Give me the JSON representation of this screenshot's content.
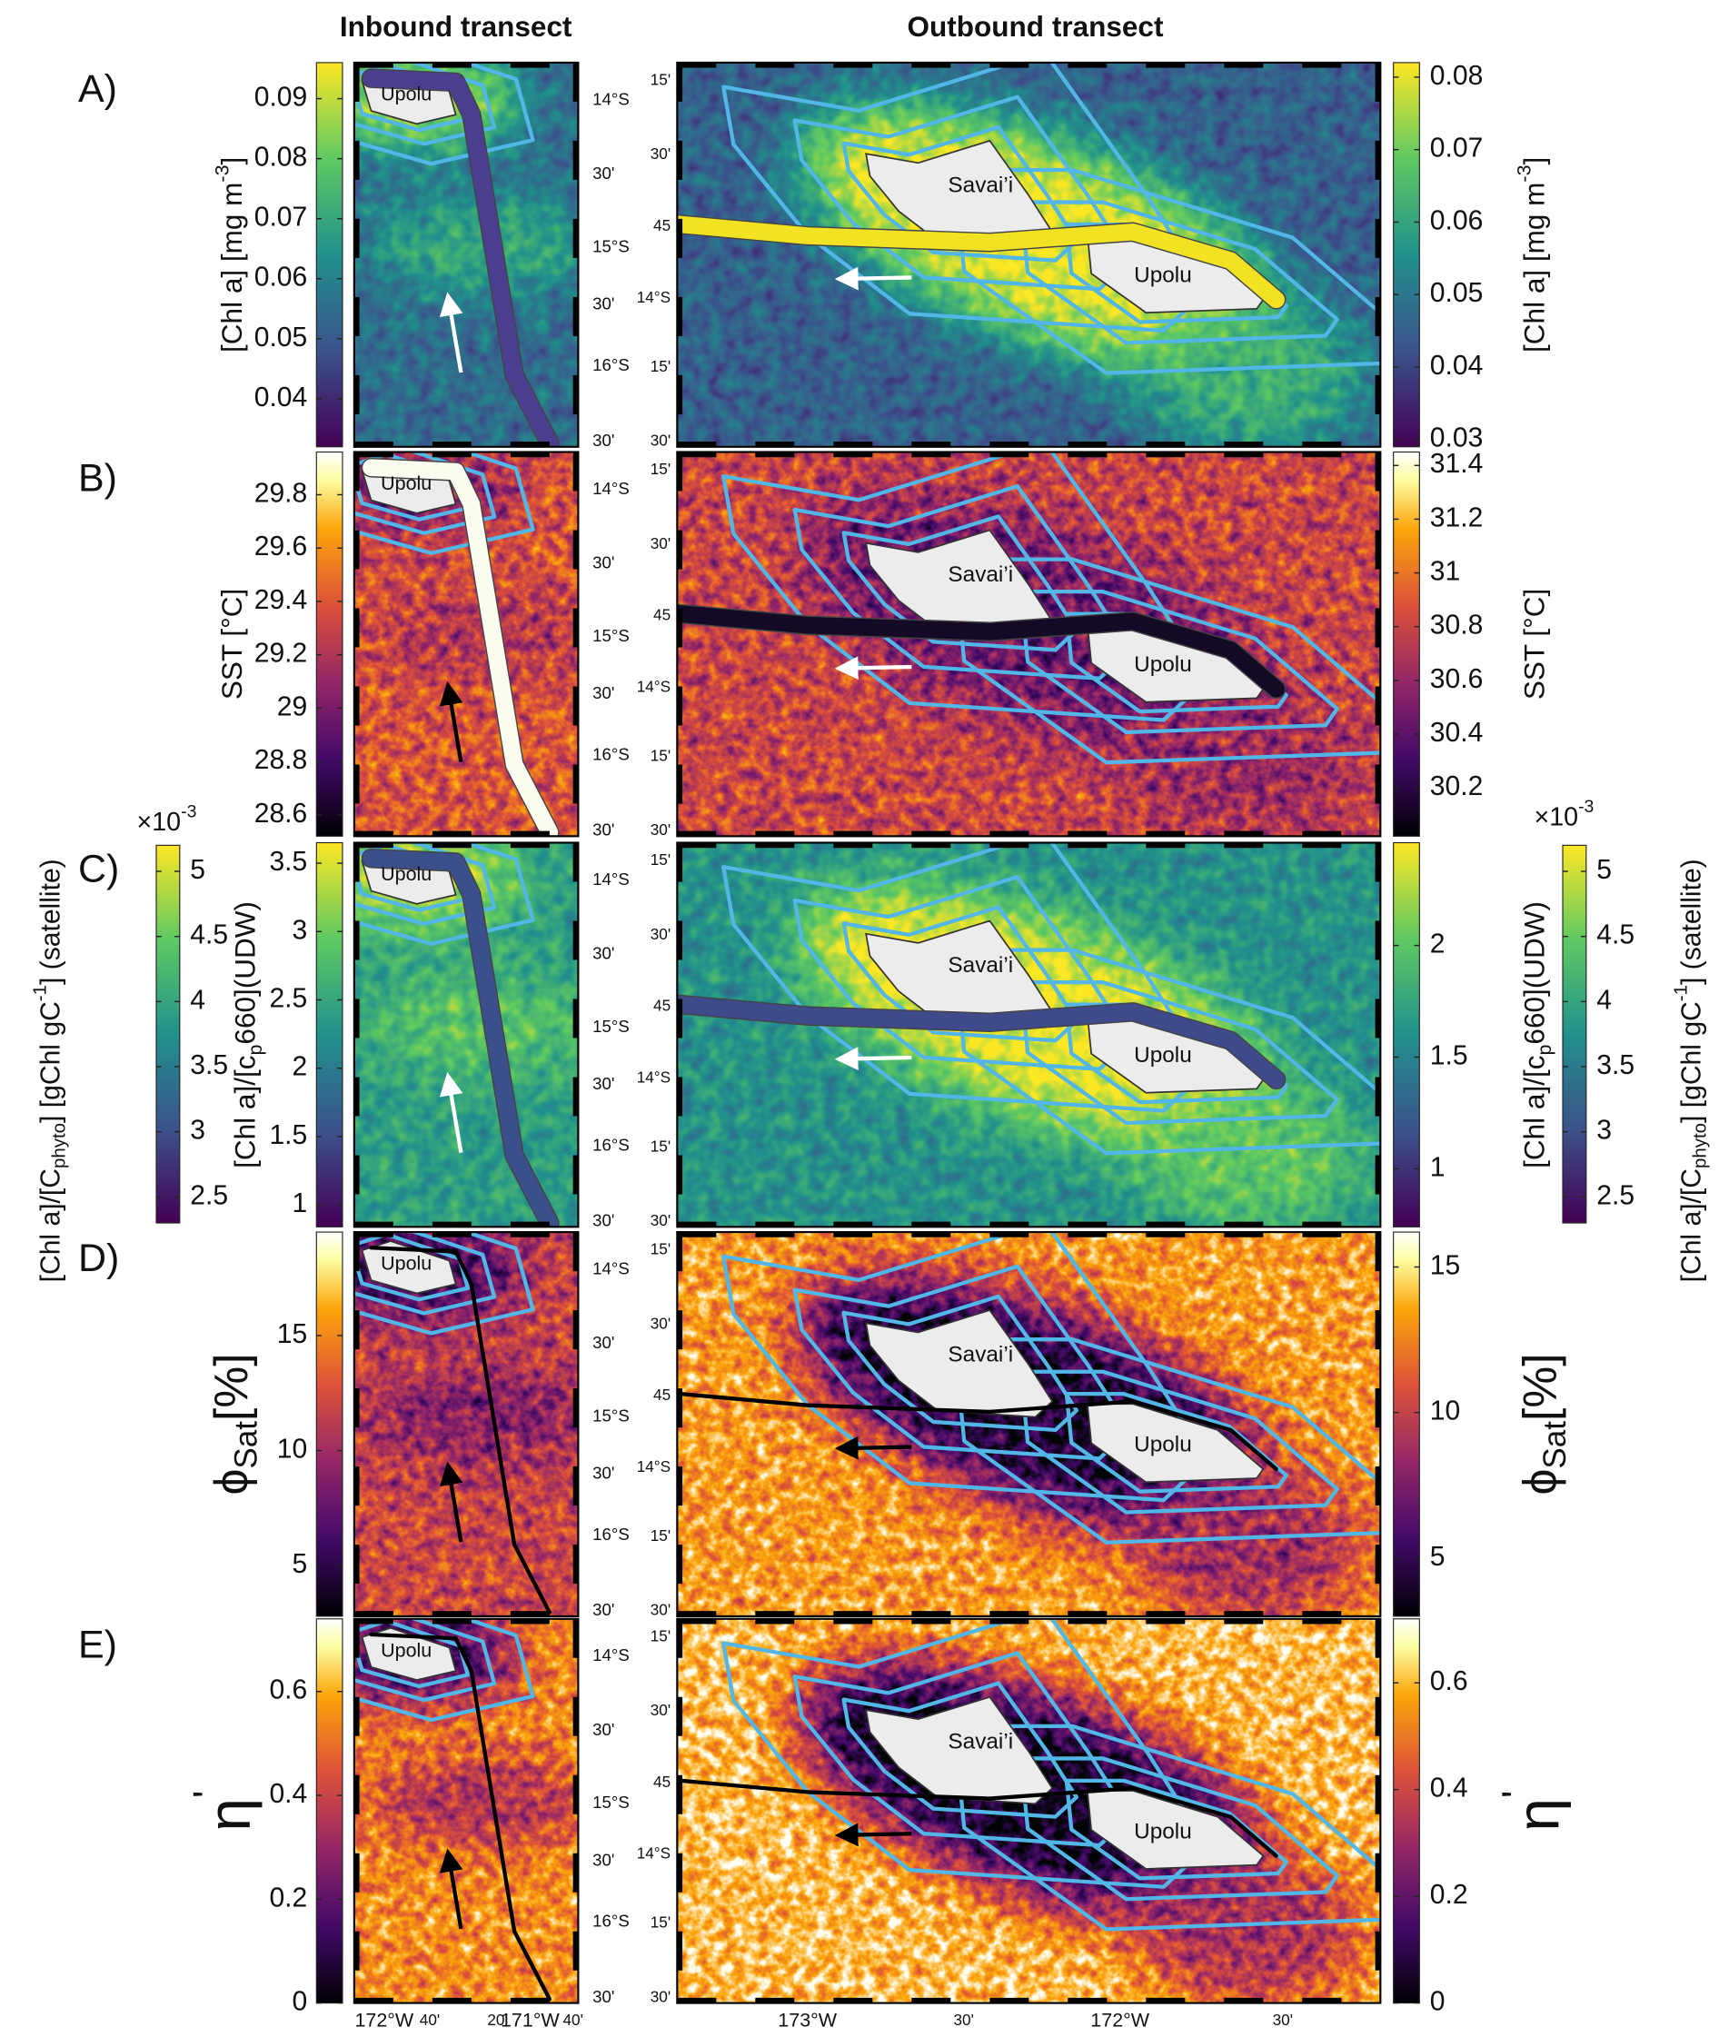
{
  "titles": {
    "inbound": "Inbound transect",
    "outbound": "Outbound transect"
  },
  "islands": {
    "savaii": "Savai’i",
    "upolu": "Upolu"
  },
  "lat_labels_left": [
    "14°S",
    "30'",
    "15°S",
    "30'",
    "16°S",
    "30'"
  ],
  "lat_labels_right": [
    "15'",
    "30'",
    "45",
    "14°S",
    "15'",
    "30'"
  ],
  "lon_labels_left": [
    "172°W",
    "40'",
    "20'",
    "171°W",
    "40'"
  ],
  "lon_labels_right": [
    "173°W",
    "30'",
    "172°W",
    "30'"
  ],
  "panels": [
    {
      "label": "A)",
      "colormap": "viridis",
      "left_colorbar": {
        "label": [
          "[Chl a] [mg m",
          {
            "sup": "-3"
          },
          "]"
        ],
        "range": [
          0.032,
          0.096
        ],
        "ticks": [
          0.04,
          0.05,
          0.06,
          0.07,
          0.08,
          0.09
        ]
      },
      "right_colorbar": {
        "label": [
          "[Chl a] [mg m",
          {
            "sup": "-3"
          },
          "]"
        ],
        "range": [
          0.029,
          0.082
        ],
        "ticks": [
          0.03,
          0.04,
          0.05,
          0.06,
          0.07,
          0.08
        ]
      }
    },
    {
      "label": "B)",
      "colormap": "inferno",
      "left_colorbar": {
        "label": [
          "SST [°C]"
        ],
        "range": [
          28.52,
          29.96
        ],
        "ticks": [
          28.6,
          28.8,
          29,
          29.2,
          29.4,
          29.6,
          29.8
        ]
      },
      "right_colorbar": {
        "label": [
          "SST [°C]"
        ],
        "range": [
          30.02,
          31.45
        ],
        "ticks": [
          30.2,
          30.4,
          30.6,
          30.8,
          31,
          31.2,
          31.4
        ]
      }
    },
    {
      "label": "C)",
      "colormap": "viridis",
      "left_colorbar": {
        "label": [
          "[Chl a]/[c",
          {
            "sub": "p"
          },
          "660](UDW)"
        ],
        "range": [
          0.84,
          3.65
        ],
        "ticks": [
          1,
          1.5,
          2,
          2.5,
          3,
          3.5
        ]
      },
      "right_colorbar": {
        "label": [
          "[Chl a]/[c",
          {
            "sub": "p"
          },
          "660](UDW)"
        ],
        "range": [
          0.74,
          2.46
        ],
        "ticks": [
          1,
          1.5,
          2
        ]
      },
      "satellite_colorbar": {
        "label": [
          "[Chl a]/[C",
          {
            "sub": "phyto"
          },
          "] [gChl gC",
          {
            "sup": "-1"
          },
          "] (satellite)"
        ],
        "multiplier": [
          "×10",
          {
            "sup": "-3"
          }
        ],
        "range": [
          2.3,
          5.2
        ],
        "ticks": [
          2.5,
          3,
          3.5,
          4,
          4.5,
          5
        ]
      }
    },
    {
      "label": "D)",
      "colormap": "inferno",
      "left_colorbar": {
        "label": [
          "ϕ",
          {
            "sub": "Sat"
          },
          "[%]"
        ],
        "range": [
          2.8,
          19.5
        ],
        "ticks": [
          5,
          10,
          15
        ]
      },
      "right_colorbar": {
        "label": [
          "ϕ",
          {
            "sub": "Sat"
          },
          "[%]"
        ],
        "range": [
          3.0,
          16.2
        ],
        "ticks": [
          5,
          10,
          15
        ]
      }
    },
    {
      "label": "E)",
      "colormap": "inferno",
      "left_colorbar": {
        "label": [
          "η",
          {
            "sup": "'"
          }
        ],
        "range": [
          0,
          0.74
        ],
        "ticks": [
          0,
          0.2,
          0.4,
          0.6
        ]
      },
      "right_colorbar": {
        "label": [
          "η",
          {
            "sup": "'"
          }
        ],
        "range": [
          0,
          0.72
        ],
        "ticks": [
          0,
          0.2,
          0.4,
          0.6
        ]
      }
    }
  ]
}
